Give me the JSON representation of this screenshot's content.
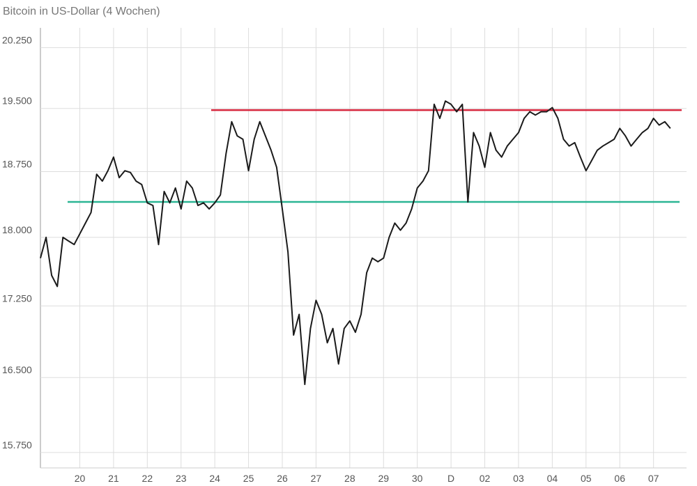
{
  "chart_data": {
    "type": "line",
    "title": "Bitcoin in US-Dollar (4 Wochen)",
    "log": true,
    "grid": true,
    "ylim": [
      15600,
      20500
    ],
    "yticks": [
      {
        "value": 15750,
        "label": "15.750"
      },
      {
        "value": 16500,
        "label": "16.500"
      },
      {
        "value": 17250,
        "label": "17.250"
      },
      {
        "value": 18000,
        "label": "18.000"
      },
      {
        "value": 18750,
        "label": "18.750"
      },
      {
        "value": 19500,
        "label": "19.500"
      },
      {
        "value": 20250,
        "label": "20.250"
      }
    ],
    "categories": [
      null,
      null,
      null,
      null,
      null,
      null,
      null,
      "20",
      null,
      null,
      null,
      null,
      null,
      "21",
      null,
      null,
      null,
      null,
      null,
      "22",
      null,
      null,
      null,
      null,
      null,
      "23",
      null,
      null,
      null,
      null,
      null,
      "24",
      null,
      null,
      null,
      null,
      null,
      "25",
      null,
      null,
      null,
      null,
      null,
      "26",
      null,
      null,
      null,
      null,
      null,
      "27",
      null,
      null,
      null,
      null,
      null,
      "28",
      null,
      null,
      null,
      null,
      null,
      "29",
      null,
      null,
      null,
      null,
      null,
      "30",
      null,
      null,
      null,
      null,
      null,
      "D",
      null,
      null,
      null,
      null,
      null,
      "02",
      null,
      null,
      null,
      null,
      null,
      "03",
      null,
      null,
      null,
      null,
      null,
      "04",
      null,
      null,
      null,
      null,
      null,
      "05",
      null,
      null,
      null,
      null,
      null,
      "06",
      null,
      null,
      null,
      null,
      null,
      "07",
      null,
      null,
      null
    ],
    "series": [
      {
        "color": "#1a1a1a",
        "values": [
          17770,
          18000,
          17580,
          17460,
          18000,
          17960,
          17920,
          18040,
          18160,
          18280,
          18720,
          18640,
          18760,
          18920,
          18680,
          18760,
          18740,
          18640,
          18600,
          18390,
          18360,
          17920,
          18520,
          18390,
          18560,
          18320,
          18640,
          18560,
          18360,
          18390,
          18320,
          18390,
          18480,
          18960,
          19340,
          19170,
          19130,
          18760,
          19130,
          19340,
          19170,
          19000,
          18800,
          18320,
          17840,
          16940,
          17160,
          16430,
          17010,
          17310,
          17160,
          16860,
          17010,
          16640,
          17010,
          17090,
          16970,
          17160,
          17610,
          17770,
          17730,
          17770,
          18000,
          18160,
          18080,
          18160,
          18320,
          18560,
          18640,
          18760,
          19550,
          19380,
          19590,
          19550,
          19460,
          19550,
          18400,
          19210,
          19050,
          18800,
          19210,
          19000,
          18920,
          19050,
          19130,
          19210,
          19380,
          19460,
          19420,
          19460,
          19460,
          19510,
          19380,
          19130,
          19050,
          19090,
          18920,
          18760,
          18880,
          19000,
          19050,
          19090,
          19130,
          19260,
          19170,
          19050,
          19130,
          19210,
          19260,
          19380,
          19300,
          19340,
          19260
        ]
      }
    ],
    "reference_lines": [
      {
        "value": 19480,
        "color": "#d7263d"
      },
      {
        "value": 18400,
        "color": "#2bb594"
      }
    ]
  }
}
